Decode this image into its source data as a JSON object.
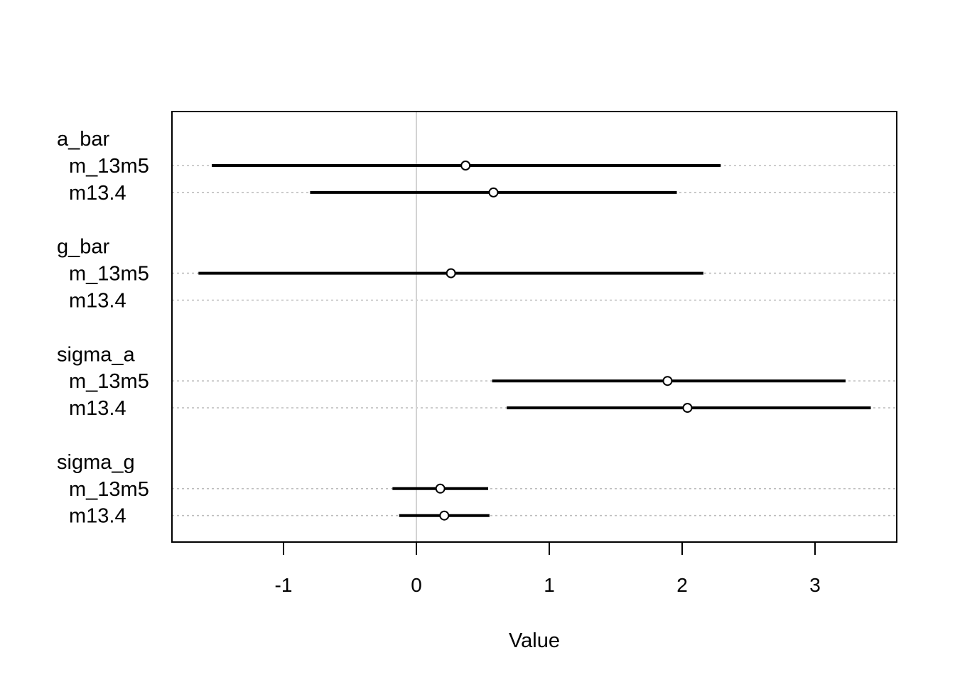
{
  "chart_data": {
    "type": "dot-interval",
    "xlabel": "Value",
    "xlim": [
      -1.85,
      3.6
    ],
    "xticks": [
      -1,
      0,
      1,
      2,
      3
    ],
    "xtick_labels": [
      "-1",
      "0",
      "1",
      "2",
      "3"
    ],
    "reference_line": 0,
    "grid": "dotted horizontal guides per row",
    "groups": [
      {
        "label": "a_bar",
        "rows": [
          {
            "label": "m_13m5",
            "mean": 0.37,
            "lower": -1.54,
            "upper": 2.29
          },
          {
            "label": "m13.4",
            "mean": 0.58,
            "lower": -0.8,
            "upper": 1.96
          }
        ]
      },
      {
        "label": "g_bar",
        "rows": [
          {
            "label": "m_13m5",
            "mean": 0.26,
            "lower": -1.64,
            "upper": 2.16
          },
          {
            "label": "m13.4",
            "mean": null,
            "lower": null,
            "upper": null
          }
        ]
      },
      {
        "label": "sigma_a",
        "rows": [
          {
            "label": "m_13m5",
            "mean": 1.89,
            "lower": 0.57,
            "upper": 3.23
          },
          {
            "label": "m13.4",
            "mean": 2.04,
            "lower": 0.68,
            "upper": 3.42
          }
        ]
      },
      {
        "label": "sigma_g",
        "rows": [
          {
            "label": "m_13m5",
            "mean": 0.18,
            "lower": -0.18,
            "upper": 0.54
          },
          {
            "label": "m13.4",
            "mean": 0.21,
            "lower": -0.13,
            "upper": 0.55
          }
        ]
      }
    ]
  }
}
